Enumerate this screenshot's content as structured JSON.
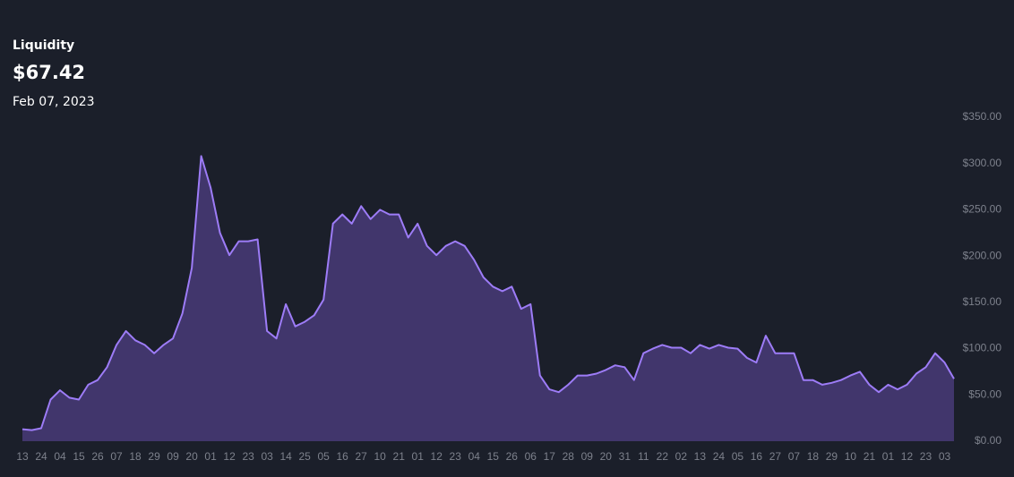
{
  "header": {
    "title": "Liquidity",
    "value": "$67.42",
    "date": "Feb 07, 2023"
  },
  "chart_data": {
    "type": "area",
    "categories": [
      "13",
      null,
      "24",
      null,
      "04",
      null,
      "15",
      null,
      "26",
      null,
      "07",
      null,
      "18",
      null,
      "29",
      null,
      "09",
      null,
      "20",
      null,
      "01",
      null,
      "12",
      null,
      "23",
      null,
      "03",
      null,
      "14",
      null,
      "25",
      null,
      "05",
      null,
      "16",
      null,
      "27",
      null,
      "10",
      null,
      "21",
      null,
      "01",
      null,
      "12",
      null,
      "23",
      null,
      "04",
      null,
      "15",
      null,
      "26",
      null,
      "06",
      null,
      "17",
      null,
      "28",
      null,
      "09",
      null,
      "20",
      null,
      "31",
      null,
      "11",
      null,
      "22",
      null,
      "02",
      null,
      "13",
      null,
      "24",
      null,
      "05",
      null,
      "16",
      null,
      "27",
      null,
      "07",
      null,
      "18",
      null,
      "29",
      null,
      "10",
      null,
      "21",
      null,
      "01",
      null,
      "12",
      null,
      "23",
      null,
      "03",
      null
    ],
    "series": [
      {
        "name": "Liquidity",
        "color": "#9d7cf7",
        "fill": "#41366c",
        "values": [
          13,
          12,
          14,
          45,
          55,
          47,
          45,
          61,
          66,
          80,
          104,
          119,
          109,
          104,
          95,
          104,
          111,
          138,
          187,
          308,
          274,
          225,
          201,
          216,
          216,
          218,
          119,
          111,
          148,
          124,
          129,
          136,
          153,
          235,
          245,
          235,
          254,
          240,
          250,
          245,
          245,
          220,
          235,
          211,
          201,
          211,
          216,
          211,
          196,
          177,
          167,
          162,
          167,
          143,
          148,
          71,
          56,
          53,
          61,
          71,
          71,
          73,
          77,
          82,
          80,
          66,
          95,
          100,
          104,
          101,
          101,
          95,
          104,
          100,
          104,
          101,
          100,
          90,
          85,
          114,
          95,
          95,
          95,
          66,
          66,
          61,
          63,
          66,
          71,
          75,
          61,
          53,
          61,
          56,
          61,
          73,
          80,
          95,
          85,
          67.42
        ]
      }
    ],
    "ylim": [
      0,
      350
    ],
    "yticks": [
      {
        "value": 0,
        "label": "$0.00"
      },
      {
        "value": 50,
        "label": "$50.00"
      },
      {
        "value": 100,
        "label": "$100.00"
      },
      {
        "value": 150,
        "label": "$150.00"
      },
      {
        "value": 200,
        "label": "$200.00"
      },
      {
        "value": 250,
        "label": "$250.00"
      },
      {
        "value": 300,
        "label": "$300.00"
      },
      {
        "value": 350,
        "label": "$350.00"
      }
    ],
    "grid": false
  }
}
